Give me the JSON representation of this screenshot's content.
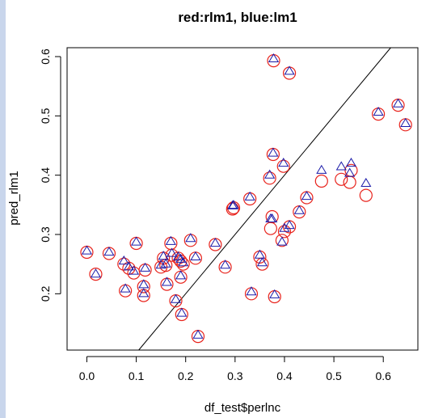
{
  "chart_data": {
    "type": "scatter",
    "title": "red:rlm1, blue:lm1",
    "xlabel": "df_test$perlnc",
    "ylabel": "pred_rlm1",
    "xlim": [
      -0.04,
      0.67
    ],
    "ylim": [
      0.105,
      0.615
    ],
    "x_ticks": [
      0.0,
      0.1,
      0.2,
      0.3,
      0.4,
      0.5,
      0.6
    ],
    "y_ticks": [
      0.2,
      0.3,
      0.4,
      0.5,
      0.6
    ],
    "x_tick_labels": [
      "0.0",
      "0.1",
      "0.2",
      "0.3",
      "0.4",
      "0.5",
      "0.6"
    ],
    "y_tick_labels": [
      "0.2",
      "0.3",
      "0.4",
      "0.5",
      "0.6"
    ],
    "grid": false,
    "legend": "none",
    "reference_line": {
      "slope": 1,
      "intercept": 0,
      "color": "#000000"
    },
    "series": [
      {
        "marker": "circle",
        "color": "#e8221b",
        "points": [
          [
            0.0,
            0.27
          ],
          [
            0.018,
            0.233
          ],
          [
            0.045,
            0.268
          ],
          [
            0.075,
            0.25
          ],
          [
            0.078,
            0.205
          ],
          [
            0.085,
            0.243
          ],
          [
            0.095,
            0.235
          ],
          [
            0.1,
            0.285
          ],
          [
            0.115,
            0.212
          ],
          [
            0.115,
            0.197
          ],
          [
            0.118,
            0.24
          ],
          [
            0.15,
            0.245
          ],
          [
            0.155,
            0.26
          ],
          [
            0.16,
            0.248
          ],
          [
            0.162,
            0.216
          ],
          [
            0.17,
            0.285
          ],
          [
            0.172,
            0.265
          ],
          [
            0.18,
            0.188
          ],
          [
            0.185,
            0.26
          ],
          [
            0.19,
            0.255
          ],
          [
            0.19,
            0.228
          ],
          [
            0.192,
            0.165
          ],
          [
            0.195,
            0.25
          ],
          [
            0.21,
            0.29
          ],
          [
            0.22,
            0.26
          ],
          [
            0.225,
            0.128
          ],
          [
            0.26,
            0.283
          ],
          [
            0.28,
            0.245
          ],
          [
            0.295,
            0.343
          ],
          [
            0.297,
            0.345
          ],
          [
            0.33,
            0.36
          ],
          [
            0.333,
            0.2
          ],
          [
            0.35,
            0.262
          ],
          [
            0.355,
            0.25
          ],
          [
            0.37,
            0.395
          ],
          [
            0.372,
            0.31
          ],
          [
            0.375,
            0.33
          ],
          [
            0.377,
            0.435
          ],
          [
            0.378,
            0.593
          ],
          [
            0.38,
            0.195
          ],
          [
            0.395,
            0.29
          ],
          [
            0.398,
            0.415
          ],
          [
            0.4,
            0.305
          ],
          [
            0.41,
            0.313
          ],
          [
            0.41,
            0.572
          ],
          [
            0.43,
            0.338
          ],
          [
            0.445,
            0.362
          ],
          [
            0.475,
            0.39
          ],
          [
            0.515,
            0.393
          ],
          [
            0.532,
            0.388
          ],
          [
            0.535,
            0.408
          ],
          [
            0.565,
            0.366
          ],
          [
            0.59,
            0.503
          ],
          [
            0.63,
            0.518
          ],
          [
            0.645,
            0.485
          ]
        ]
      },
      {
        "marker": "triangle",
        "color": "#1a1aa8",
        "points": [
          [
            0.0,
            0.272
          ],
          [
            0.018,
            0.233
          ],
          [
            0.045,
            0.27
          ],
          [
            0.075,
            0.255
          ],
          [
            0.078,
            0.208
          ],
          [
            0.085,
            0.245
          ],
          [
            0.095,
            0.238
          ],
          [
            0.1,
            0.287
          ],
          [
            0.115,
            0.215
          ],
          [
            0.115,
            0.2
          ],
          [
            0.118,
            0.243
          ],
          [
            0.15,
            0.248
          ],
          [
            0.155,
            0.263
          ],
          [
            0.16,
            0.25
          ],
          [
            0.162,
            0.219
          ],
          [
            0.17,
            0.288
          ],
          [
            0.172,
            0.268
          ],
          [
            0.18,
            0.19
          ],
          [
            0.185,
            0.262
          ],
          [
            0.19,
            0.258
          ],
          [
            0.19,
            0.23
          ],
          [
            0.192,
            0.167
          ],
          [
            0.195,
            0.252
          ],
          [
            0.21,
            0.293
          ],
          [
            0.22,
            0.262
          ],
          [
            0.225,
            0.13
          ],
          [
            0.26,
            0.285
          ],
          [
            0.28,
            0.248
          ],
          [
            0.295,
            0.348
          ],
          [
            0.297,
            0.349
          ],
          [
            0.33,
            0.363
          ],
          [
            0.333,
            0.203
          ],
          [
            0.35,
            0.265
          ],
          [
            0.355,
            0.252
          ],
          [
            0.37,
            0.4
          ],
          [
            0.372,
            0.326
          ],
          [
            0.375,
            0.326
          ],
          [
            0.377,
            0.437
          ],
          [
            0.378,
            0.596
          ],
          [
            0.38,
            0.198
          ],
          [
            0.395,
            0.287
          ],
          [
            0.398,
            0.42
          ],
          [
            0.4,
            0.31
          ],
          [
            0.41,
            0.315
          ],
          [
            0.41,
            0.575
          ],
          [
            0.43,
            0.34
          ],
          [
            0.445,
            0.364
          ],
          [
            0.475,
            0.408
          ],
          [
            0.515,
            0.414
          ],
          [
            0.532,
            0.403
          ],
          [
            0.535,
            0.42
          ],
          [
            0.565,
            0.386
          ],
          [
            0.59,
            0.506
          ],
          [
            0.63,
            0.52
          ],
          [
            0.645,
            0.487
          ]
        ]
      }
    ]
  }
}
